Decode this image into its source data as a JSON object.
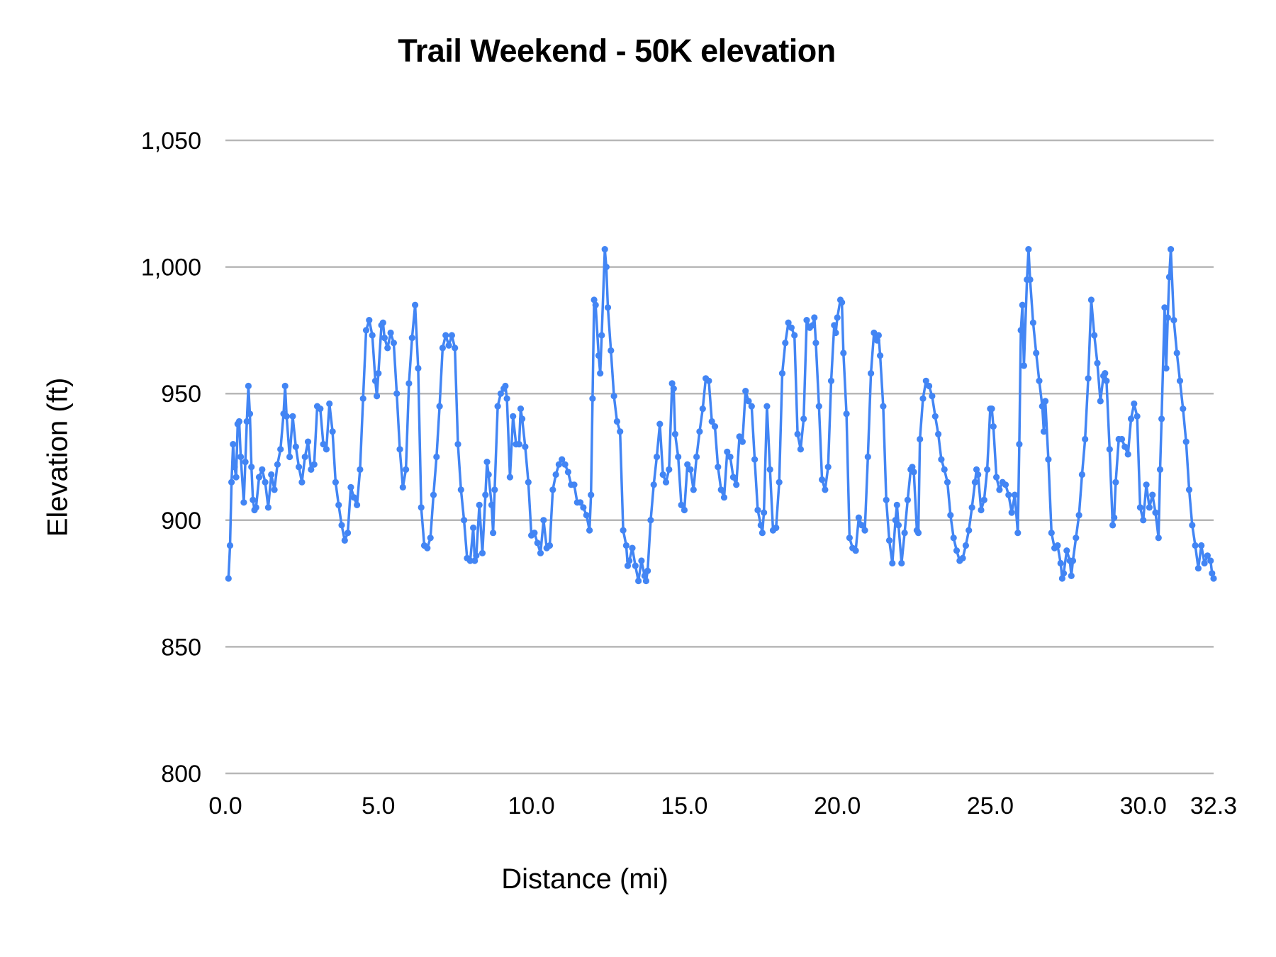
{
  "chart_data": {
    "type": "line",
    "title": "Trail Weekend - 50K elevation",
    "xlabel": "Distance (mi)",
    "ylabel": "Elevation (ft)",
    "xlim": [
      0,
      32.3
    ],
    "ylim": [
      800,
      1050
    ],
    "x_tick_values": [
      0,
      5,
      10,
      15,
      20,
      25,
      30,
      32.3
    ],
    "x_tick_labels": [
      "0.0",
      "5.0",
      "10.0",
      "15.0",
      "20.0",
      "25.0",
      "30.0",
      "32.3"
    ],
    "y_tick_values": [
      1050,
      1000,
      950,
      900,
      850,
      800
    ],
    "y_tick_labels": [
      "1,050",
      "1,000",
      "950",
      "900",
      "850",
      "800"
    ],
    "grid": "horizontal",
    "legend_position": "none",
    "series_name": "Elevation",
    "series_color": "#4285f4",
    "gridline_color": "#b7b7b7",
    "text_color": "#000000",
    "marker": "circle",
    "points": [
      [
        0.1,
        877
      ],
      [
        0.15,
        890
      ],
      [
        0.2,
        915
      ],
      [
        0.25,
        930
      ],
      [
        0.3,
        921
      ],
      [
        0.35,
        917
      ],
      [
        0.4,
        938
      ],
      [
        0.45,
        939
      ],
      [
        0.5,
        925
      ],
      [
        0.6,
        907
      ],
      [
        0.65,
        923
      ],
      [
        0.7,
        939
      ],
      [
        0.75,
        953
      ],
      [
        0.8,
        942
      ],
      [
        0.85,
        921
      ],
      [
        0.9,
        908
      ],
      [
        0.95,
        904
      ],
      [
        1.0,
        905
      ],
      [
        1.1,
        917
      ],
      [
        1.2,
        920
      ],
      [
        1.3,
        915
      ],
      [
        1.4,
        905
      ],
      [
        1.5,
        918
      ],
      [
        1.6,
        912
      ],
      [
        1.7,
        922
      ],
      [
        1.8,
        928
      ],
      [
        1.9,
        942
      ],
      [
        1.95,
        953
      ],
      [
        2.0,
        941
      ],
      [
        2.1,
        925
      ],
      [
        2.2,
        941
      ],
      [
        2.3,
        929
      ],
      [
        2.4,
        921
      ],
      [
        2.5,
        915
      ],
      [
        2.6,
        925
      ],
      [
        2.7,
        931
      ],
      [
        2.8,
        920
      ],
      [
        2.9,
        922
      ],
      [
        3.0,
        945
      ],
      [
        3.1,
        944
      ],
      [
        3.2,
        930
      ],
      [
        3.3,
        928
      ],
      [
        3.4,
        946
      ],
      [
        3.5,
        935
      ],
      [
        3.6,
        915
      ],
      [
        3.7,
        906
      ],
      [
        3.8,
        898
      ],
      [
        3.9,
        892
      ],
      [
        4.0,
        895
      ],
      [
        4.1,
        913
      ],
      [
        4.2,
        909
      ],
      [
        4.3,
        906
      ],
      [
        4.4,
        920
      ],
      [
        4.5,
        948
      ],
      [
        4.6,
        975
      ],
      [
        4.7,
        979
      ],
      [
        4.8,
        973
      ],
      [
        4.9,
        955
      ],
      [
        4.95,
        949
      ],
      [
        5.0,
        958
      ],
      [
        5.1,
        977
      ],
      [
        5.15,
        978
      ],
      [
        5.2,
        972
      ],
      [
        5.3,
        968
      ],
      [
        5.4,
        974
      ],
      [
        5.5,
        970
      ],
      [
        5.6,
        950
      ],
      [
        5.7,
        928
      ],
      [
        5.8,
        913
      ],
      [
        5.9,
        920
      ],
      [
        6.0,
        954
      ],
      [
        6.1,
        972
      ],
      [
        6.2,
        985
      ],
      [
        6.3,
        960
      ],
      [
        6.4,
        905
      ],
      [
        6.5,
        890
      ],
      [
        6.6,
        889
      ],
      [
        6.7,
        893
      ],
      [
        6.8,
        910
      ],
      [
        6.9,
        925
      ],
      [
        7.0,
        945
      ],
      [
        7.1,
        968
      ],
      [
        7.2,
        973
      ],
      [
        7.3,
        969
      ],
      [
        7.4,
        973
      ],
      [
        7.5,
        968
      ],
      [
        7.6,
        930
      ],
      [
        7.7,
        912
      ],
      [
        7.8,
        900
      ],
      [
        7.9,
        885
      ],
      [
        8.0,
        884
      ],
      [
        8.1,
        897
      ],
      [
        8.15,
        884
      ],
      [
        8.2,
        886
      ],
      [
        8.3,
        906
      ],
      [
        8.4,
        887
      ],
      [
        8.5,
        910
      ],
      [
        8.55,
        923
      ],
      [
        8.6,
        918
      ],
      [
        8.7,
        906
      ],
      [
        8.75,
        895
      ],
      [
        8.8,
        912
      ],
      [
        8.9,
        945
      ],
      [
        9.0,
        950
      ],
      [
        9.1,
        952
      ],
      [
        9.15,
        953
      ],
      [
        9.2,
        948
      ],
      [
        9.3,
        917
      ],
      [
        9.4,
        941
      ],
      [
        9.5,
        930
      ],
      [
        9.6,
        930
      ],
      [
        9.65,
        944
      ],
      [
        9.7,
        940
      ],
      [
        9.8,
        929
      ],
      [
        9.9,
        915
      ],
      [
        10.0,
        894
      ],
      [
        10.1,
        895
      ],
      [
        10.2,
        891
      ],
      [
        10.3,
        887
      ],
      [
        10.4,
        900
      ],
      [
        10.5,
        889
      ],
      [
        10.6,
        890
      ],
      [
        10.7,
        912
      ],
      [
        10.8,
        918
      ],
      [
        10.9,
        922
      ],
      [
        11.0,
        924
      ],
      [
        11.1,
        922
      ],
      [
        11.2,
        919
      ],
      [
        11.3,
        914
      ],
      [
        11.4,
        914
      ],
      [
        11.5,
        907
      ],
      [
        11.6,
        907
      ],
      [
        11.7,
        905
      ],
      [
        11.8,
        902
      ],
      [
        11.9,
        896
      ],
      [
        11.95,
        910
      ],
      [
        12.0,
        948
      ],
      [
        12.05,
        987
      ],
      [
        12.1,
        985
      ],
      [
        12.2,
        965
      ],
      [
        12.25,
        958
      ],
      [
        12.3,
        973
      ],
      [
        12.4,
        1007
      ],
      [
        12.45,
        1000
      ],
      [
        12.5,
        984
      ],
      [
        12.6,
        967
      ],
      [
        12.7,
        949
      ],
      [
        12.8,
        939
      ],
      [
        12.9,
        935
      ],
      [
        13.0,
        896
      ],
      [
        13.1,
        890
      ],
      [
        13.15,
        882
      ],
      [
        13.2,
        884
      ],
      [
        13.3,
        889
      ],
      [
        13.4,
        882
      ],
      [
        13.5,
        876
      ],
      [
        13.6,
        884
      ],
      [
        13.7,
        878
      ],
      [
        13.75,
        876
      ],
      [
        13.8,
        880
      ],
      [
        13.9,
        900
      ],
      [
        14.0,
        914
      ],
      [
        14.1,
        925
      ],
      [
        14.2,
        938
      ],
      [
        14.3,
        918
      ],
      [
        14.4,
        915
      ],
      [
        14.5,
        920
      ],
      [
        14.6,
        954
      ],
      [
        14.65,
        952
      ],
      [
        14.7,
        934
      ],
      [
        14.8,
        925
      ],
      [
        14.9,
        906
      ],
      [
        15.0,
        904
      ],
      [
        15.1,
        922
      ],
      [
        15.2,
        920
      ],
      [
        15.3,
        912
      ],
      [
        15.4,
        925
      ],
      [
        15.5,
        935
      ],
      [
        15.6,
        944
      ],
      [
        15.7,
        956
      ],
      [
        15.8,
        955
      ],
      [
        15.9,
        939
      ],
      [
        16.0,
        937
      ],
      [
        16.1,
        921
      ],
      [
        16.2,
        912
      ],
      [
        16.3,
        909
      ],
      [
        16.4,
        927
      ],
      [
        16.5,
        925
      ],
      [
        16.6,
        917
      ],
      [
        16.7,
        914
      ],
      [
        16.8,
        933
      ],
      [
        16.9,
        931
      ],
      [
        17.0,
        951
      ],
      [
        17.1,
        947
      ],
      [
        17.2,
        945
      ],
      [
        17.3,
        924
      ],
      [
        17.4,
        904
      ],
      [
        17.5,
        898
      ],
      [
        17.55,
        895
      ],
      [
        17.6,
        903
      ],
      [
        17.7,
        945
      ],
      [
        17.8,
        920
      ],
      [
        17.9,
        896
      ],
      [
        18.0,
        897
      ],
      [
        18.1,
        915
      ],
      [
        18.2,
        958
      ],
      [
        18.3,
        970
      ],
      [
        18.4,
        978
      ],
      [
        18.5,
        976
      ],
      [
        18.6,
        973
      ],
      [
        18.7,
        934
      ],
      [
        18.8,
        928
      ],
      [
        18.9,
        940
      ],
      [
        19.0,
        979
      ],
      [
        19.1,
        976
      ],
      [
        19.2,
        977
      ],
      [
        19.25,
        980
      ],
      [
        19.3,
        970
      ],
      [
        19.4,
        945
      ],
      [
        19.5,
        916
      ],
      [
        19.6,
        912
      ],
      [
        19.7,
        921
      ],
      [
        19.8,
        955
      ],
      [
        19.9,
        977
      ],
      [
        19.95,
        974
      ],
      [
        20.0,
        980
      ],
      [
        20.1,
        987
      ],
      [
        20.15,
        986
      ],
      [
        20.2,
        966
      ],
      [
        20.3,
        942
      ],
      [
        20.4,
        893
      ],
      [
        20.5,
        889
      ],
      [
        20.6,
        888
      ],
      [
        20.7,
        901
      ],
      [
        20.8,
        898
      ],
      [
        20.9,
        896
      ],
      [
        21.0,
        925
      ],
      [
        21.1,
        958
      ],
      [
        21.2,
        974
      ],
      [
        21.3,
        971
      ],
      [
        21.35,
        973
      ],
      [
        21.4,
        965
      ],
      [
        21.5,
        945
      ],
      [
        21.6,
        908
      ],
      [
        21.7,
        892
      ],
      [
        21.8,
        883
      ],
      [
        21.9,
        900
      ],
      [
        21.95,
        906
      ],
      [
        22.0,
        898
      ],
      [
        22.1,
        883
      ],
      [
        22.2,
        895
      ],
      [
        22.3,
        908
      ],
      [
        22.4,
        920
      ],
      [
        22.45,
        921
      ],
      [
        22.5,
        919
      ],
      [
        22.6,
        896
      ],
      [
        22.65,
        895
      ],
      [
        22.7,
        932
      ],
      [
        22.8,
        948
      ],
      [
        22.9,
        955
      ],
      [
        23.0,
        953
      ],
      [
        23.1,
        949
      ],
      [
        23.2,
        941
      ],
      [
        23.3,
        934
      ],
      [
        23.4,
        924
      ],
      [
        23.5,
        920
      ],
      [
        23.6,
        915
      ],
      [
        23.7,
        902
      ],
      [
        23.8,
        893
      ],
      [
        23.9,
        888
      ],
      [
        24.0,
        884
      ],
      [
        24.1,
        885
      ],
      [
        24.2,
        890
      ],
      [
        24.3,
        896
      ],
      [
        24.4,
        905
      ],
      [
        24.5,
        915
      ],
      [
        24.55,
        920
      ],
      [
        24.6,
        918
      ],
      [
        24.7,
        904
      ],
      [
        24.8,
        908
      ],
      [
        24.9,
        920
      ],
      [
        25.0,
        944
      ],
      [
        25.05,
        944
      ],
      [
        25.1,
        937
      ],
      [
        25.2,
        917
      ],
      [
        25.3,
        912
      ],
      [
        25.4,
        915
      ],
      [
        25.5,
        914
      ],
      [
        25.6,
        910
      ],
      [
        25.7,
        903
      ],
      [
        25.8,
        910
      ],
      [
        25.9,
        895
      ],
      [
        25.95,
        930
      ],
      [
        26.0,
        975
      ],
      [
        26.05,
        985
      ],
      [
        26.1,
        961
      ],
      [
        26.2,
        995
      ],
      [
        26.25,
        1007
      ],
      [
        26.3,
        995
      ],
      [
        26.4,
        978
      ],
      [
        26.5,
        966
      ],
      [
        26.6,
        955
      ],
      [
        26.7,
        945
      ],
      [
        26.75,
        935
      ],
      [
        26.8,
        947
      ],
      [
        26.9,
        924
      ],
      [
        27.0,
        895
      ],
      [
        27.1,
        889
      ],
      [
        27.2,
        890
      ],
      [
        27.3,
        883
      ],
      [
        27.35,
        877
      ],
      [
        27.4,
        879
      ],
      [
        27.5,
        888
      ],
      [
        27.6,
        884
      ],
      [
        27.65,
        878
      ],
      [
        27.7,
        884
      ],
      [
        27.8,
        893
      ],
      [
        27.9,
        902
      ],
      [
        28.0,
        918
      ],
      [
        28.1,
        932
      ],
      [
        28.2,
        956
      ],
      [
        28.3,
        987
      ],
      [
        28.4,
        973
      ],
      [
        28.5,
        962
      ],
      [
        28.6,
        947
      ],
      [
        28.7,
        957
      ],
      [
        28.75,
        958
      ],
      [
        28.8,
        955
      ],
      [
        28.9,
        928
      ],
      [
        29.0,
        898
      ],
      [
        29.05,
        901
      ],
      [
        29.1,
        915
      ],
      [
        29.2,
        932
      ],
      [
        29.3,
        932
      ],
      [
        29.4,
        929
      ],
      [
        29.5,
        926
      ],
      [
        29.6,
        940
      ],
      [
        29.7,
        946
      ],
      [
        29.8,
        941
      ],
      [
        29.9,
        905
      ],
      [
        30.0,
        900
      ],
      [
        30.1,
        914
      ],
      [
        30.2,
        905
      ],
      [
        30.3,
        910
      ],
      [
        30.4,
        903
      ],
      [
        30.5,
        893
      ],
      [
        30.55,
        920
      ],
      [
        30.6,
        940
      ],
      [
        30.7,
        984
      ],
      [
        30.75,
        960
      ],
      [
        30.8,
        980
      ],
      [
        30.85,
        996
      ],
      [
        30.9,
        1007
      ],
      [
        31.0,
        979
      ],
      [
        31.1,
        966
      ],
      [
        31.2,
        955
      ],
      [
        31.3,
        944
      ],
      [
        31.4,
        931
      ],
      [
        31.5,
        912
      ],
      [
        31.6,
        898
      ],
      [
        31.7,
        890
      ],
      [
        31.8,
        881
      ],
      [
        31.9,
        890
      ],
      [
        32.0,
        883
      ],
      [
        32.1,
        886
      ],
      [
        32.2,
        884
      ],
      [
        32.25,
        879
      ],
      [
        32.3,
        877
      ]
    ]
  }
}
